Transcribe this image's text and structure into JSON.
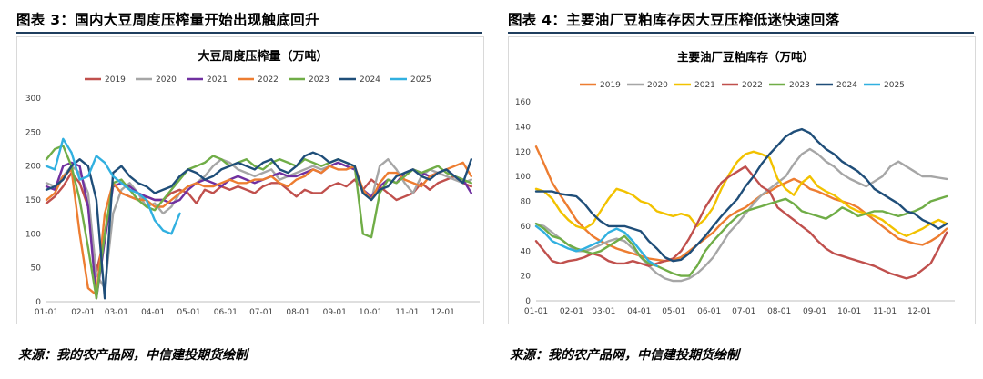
{
  "figures": {
    "left": {
      "title": "图表 3：国内大豆周度压榨量开始出现触底回升",
      "source": "来源：我的农产品网，中信建投期货绘制"
    },
    "right": {
      "title": "图表 4：主要油厂豆粕库存因大豆压榨低迷快速回落",
      "source": "来源：我的农产品网，中信建投期货绘制"
    }
  },
  "chart_data": [
    {
      "type": "line",
      "title": "大豆周度压榨量（万吨）",
      "xlabel": "",
      "ylabel": "",
      "x_tick_labels": [
        "01-01",
        "02-01",
        "03-01",
        "04-01",
        "05-01",
        "06-01",
        "07-01",
        "08-01",
        "09-01",
        "10-01",
        "11-01",
        "12-01"
      ],
      "x": [
        1,
        2,
        3,
        4,
        5,
        6,
        7,
        8,
        9,
        10,
        11,
        12,
        13,
        14,
        15,
        16,
        17,
        18,
        19,
        20,
        21,
        22,
        23,
        24,
        25,
        26,
        27,
        28,
        29,
        30,
        31,
        32,
        33,
        34,
        35,
        36,
        37,
        38,
        39,
        40,
        41,
        42,
        43,
        44,
        45,
        46,
        47,
        48,
        49,
        50,
        51,
        52
      ],
      "xlim": [
        1,
        53
      ],
      "ylim": [
        0,
        300
      ],
      "yticks": [
        0,
        50,
        100,
        150,
        200,
        250,
        300
      ],
      "grid": false,
      "legend_position": "top",
      "series": [
        {
          "name": "2019",
          "color": "#c0504d",
          "values": [
            145,
            155,
            170,
            190,
            175,
            140,
            45,
            95,
            175,
            160,
            155,
            150,
            155,
            150,
            150,
            160,
            165,
            160,
            145,
            165,
            160,
            170,
            165,
            170,
            165,
            160,
            170,
            175,
            175,
            165,
            155,
            165,
            160,
            160,
            170,
            175,
            170,
            180,
            165,
            180,
            170,
            160,
            150,
            155,
            160,
            175,
            165,
            175,
            180,
            185,
            175,
            170
          ]
        },
        {
          "name": "2020",
          "color": "#a6a6a6",
          "values": [
            175,
            170,
            185,
            200,
            190,
            160,
            40,
            20,
            130,
            165,
            175,
            160,
            140,
            145,
            130,
            140,
            160,
            170,
            175,
            185,
            200,
            210,
            205,
            195,
            190,
            185,
            190,
            195,
            180,
            185,
            190,
            195,
            200,
            195,
            200,
            205,
            200,
            195,
            160,
            150,
            200,
            210,
            195,
            175,
            160,
            185,
            195,
            190,
            185,
            180,
            175,
            180
          ]
        },
        {
          "name": "2021",
          "color": "#7030a0",
          "values": [
            170,
            165,
            200,
            205,
            200,
            140,
            5,
            90,
            170,
            175,
            170,
            160,
            155,
            150,
            150,
            145,
            150,
            165,
            175,
            180,
            175,
            170,
            180,
            185,
            180,
            175,
            180,
            185,
            190,
            185,
            185,
            190,
            195,
            190,
            200,
            205,
            200,
            195,
            165,
            155,
            170,
            180,
            175,
            190,
            195,
            190,
            185,
            190,
            195,
            185,
            180,
            160
          ]
        },
        {
          "name": "2022",
          "color": "#ed7d31",
          "values": [
            150,
            160,
            185,
            195,
            100,
            20,
            10,
            130,
            175,
            160,
            155,
            150,
            150,
            140,
            140,
            150,
            160,
            170,
            175,
            170,
            170,
            175,
            180,
            175,
            175,
            180,
            180,
            185,
            175,
            170,
            180,
            185,
            195,
            190,
            200,
            195,
            195,
            200,
            165,
            150,
            175,
            190,
            190,
            180,
            175,
            170,
            185,
            190,
            195,
            200,
            205,
            185
          ]
        },
        {
          "name": "2023",
          "color": "#70ad47",
          "values": [
            210,
            225,
            230,
            200,
            150,
            80,
            5,
            100,
            175,
            180,
            165,
            150,
            140,
            135,
            150,
            165,
            180,
            195,
            200,
            205,
            215,
            210,
            200,
            205,
            210,
            200,
            195,
            205,
            210,
            205,
            200,
            210,
            205,
            200,
            205,
            210,
            205,
            200,
            100,
            95,
            160,
            180,
            175,
            185,
            195,
            190,
            195,
            200,
            190,
            185,
            180,
            175
          ]
        },
        {
          "name": "2024",
          "color": "#1f4e79",
          "values": [
            165,
            170,
            180,
            200,
            210,
            200,
            150,
            5,
            190,
            200,
            185,
            175,
            170,
            160,
            165,
            170,
            185,
            195,
            190,
            180,
            185,
            195,
            200,
            205,
            200,
            195,
            205,
            210,
            195,
            190,
            200,
            215,
            220,
            215,
            205,
            210,
            205,
            200,
            160,
            150,
            165,
            170,
            185,
            190,
            195,
            185,
            180,
            190,
            195,
            185,
            175,
            210
          ]
        },
        {
          "name": "2025",
          "color": "#31b0e0",
          "values": [
            200,
            195,
            240,
            220,
            180,
            185,
            215,
            205,
            185,
            175,
            165,
            160,
            150,
            120,
            105,
            100,
            130,
            null,
            null,
            null,
            null,
            null,
            null,
            null,
            null,
            null,
            null,
            null,
            null,
            null,
            null,
            null,
            null,
            null,
            null,
            null,
            null,
            null,
            null,
            null,
            null,
            null,
            null,
            null,
            null,
            null,
            null,
            null,
            null,
            null,
            null,
            null
          ]
        }
      ]
    },
    {
      "type": "line",
      "title": "主要油厂豆粕库存（万吨）",
      "xlabel": "",
      "ylabel": "",
      "x_tick_labels": [
        "01-01",
        "02-01",
        "03-01",
        "04-01",
        "05-01",
        "06-01",
        "07-01",
        "08-01",
        "09-01",
        "10-01",
        "11-01",
        "12-01"
      ],
      "x": [
        1,
        2,
        3,
        4,
        5,
        6,
        7,
        8,
        9,
        10,
        11,
        12,
        13,
        14,
        15,
        16,
        17,
        18,
        19,
        20,
        21,
        22,
        23,
        24,
        25,
        26,
        27,
        28,
        29,
        30,
        31,
        32,
        33,
        34,
        35,
        36,
        37,
        38,
        39,
        40,
        41,
        42,
        43,
        44,
        45,
        46,
        47,
        48,
        49,
        50,
        51,
        52
      ],
      "xlim": [
        1,
        53
      ],
      "ylim": [
        0,
        160
      ],
      "yticks": [
        0,
        20,
        40,
        60,
        80,
        100,
        120,
        140,
        160
      ],
      "grid": false,
      "legend_position": "top",
      "series": [
        {
          "name": "2019",
          "color": "#ed7d31",
          "values": [
            124,
            110,
            95,
            85,
            75,
            65,
            58,
            52,
            48,
            45,
            42,
            40,
            38,
            36,
            34,
            33,
            32,
            33,
            35,
            40,
            45,
            50,
            55,
            62,
            68,
            72,
            75,
            80,
            85,
            88,
            92,
            95,
            98,
            95,
            90,
            88,
            85,
            82,
            80,
            78,
            75,
            70,
            65,
            60,
            55,
            50,
            48,
            46,
            45,
            48,
            52,
            58
          ]
        },
        {
          "name": "2020",
          "color": "#a6a6a6",
          "values": [
            62,
            60,
            55,
            50,
            45,
            40,
            40,
            42,
            45,
            48,
            50,
            48,
            42,
            35,
            28,
            22,
            18,
            16,
            16,
            18,
            22,
            28,
            35,
            45,
            55,
            62,
            70,
            78,
            85,
            90,
            95,
            100,
            110,
            118,
            122,
            118,
            112,
            108,
            102,
            98,
            95,
            92,
            96,
            100,
            108,
            112,
            108,
            104,
            100,
            100,
            99,
            98
          ]
        },
        {
          "name": "2021",
          "color": "#f2c200",
          "values": [
            90,
            88,
            82,
            72,
            65,
            60,
            58,
            62,
            72,
            82,
            90,
            88,
            85,
            80,
            78,
            72,
            70,
            68,
            70,
            68,
            60,
            66,
            75,
            90,
            102,
            112,
            118,
            120,
            118,
            115,
            98,
            90,
            85,
            95,
            100,
            92,
            88,
            85,
            80,
            75,
            72,
            70,
            68,
            65,
            60,
            55,
            52,
            55,
            58,
            62,
            65,
            62
          ]
        },
        {
          "name": "2022",
          "color": "#c0504d",
          "values": [
            48,
            40,
            32,
            30,
            32,
            33,
            35,
            38,
            36,
            32,
            30,
            30,
            32,
            30,
            28,
            30,
            32,
            34,
            40,
            50,
            62,
            75,
            85,
            95,
            100,
            104,
            108,
            100,
            92,
            88,
            75,
            70,
            65,
            60,
            55,
            48,
            42,
            38,
            36,
            34,
            32,
            30,
            28,
            25,
            22,
            20,
            18,
            20,
            25,
            30,
            42,
            55
          ]
        },
        {
          "name": "2023",
          "color": "#70ad47",
          "values": [
            62,
            58,
            52,
            50,
            45,
            42,
            40,
            38,
            40,
            44,
            48,
            52,
            45,
            35,
            30,
            28,
            25,
            22,
            20,
            20,
            28,
            40,
            48,
            55,
            62,
            68,
            72,
            74,
            76,
            78,
            80,
            82,
            78,
            72,
            70,
            68,
            66,
            70,
            75,
            72,
            68,
            70,
            72,
            72,
            70,
            68,
            70,
            72,
            75,
            80,
            82,
            84
          ]
        },
        {
          "name": "2024",
          "color": "#1f4e79",
          "values": [
            88,
            88,
            88,
            86,
            85,
            84,
            78,
            70,
            64,
            60,
            60,
            60,
            58,
            56,
            48,
            42,
            35,
            32,
            33,
            38,
            45,
            52,
            60,
            68,
            75,
            82,
            92,
            100,
            110,
            118,
            125,
            132,
            136,
            138,
            135,
            128,
            122,
            118,
            112,
            108,
            104,
            98,
            90,
            86,
            82,
            78,
            72,
            70,
            65,
            62,
            58,
            62
          ]
        },
        {
          "name": "2025",
          "color": "#31b0e0",
          "values": [
            60,
            55,
            48,
            45,
            42,
            40,
            42,
            45,
            48,
            55,
            58,
            55,
            48,
            40,
            32,
            28,
            null,
            null,
            null,
            null,
            null,
            null,
            null,
            null,
            null,
            null,
            null,
            null,
            null,
            null,
            null,
            null,
            null,
            null,
            null,
            null,
            null,
            null,
            null,
            null,
            null,
            null,
            null,
            null,
            null,
            null,
            null,
            null,
            null,
            null,
            null,
            null
          ]
        }
      ]
    }
  ]
}
